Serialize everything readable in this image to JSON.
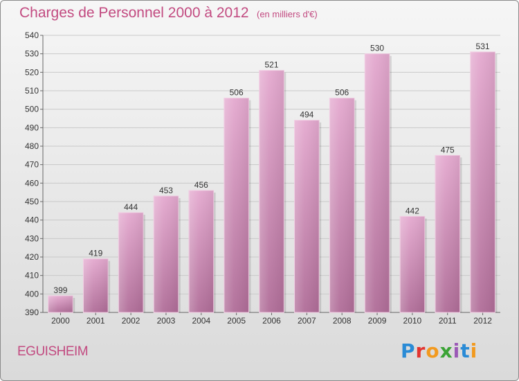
{
  "header": {
    "title": "Charges de Personnel 2000 à 2012",
    "subtitle": "(en milliers d'€)"
  },
  "footer": {
    "commune": "EGUISHEIM",
    "logo": {
      "letters": [
        "P",
        "r",
        "o",
        "x",
        "i",
        "t",
        "i"
      ],
      "colors": [
        "#2a8bd6",
        "#e3342f",
        "#f29a1f",
        "#3aa335",
        "#9b59b6",
        "#2a8bd6",
        "#f29a1f"
      ]
    }
  },
  "colors": {
    "bar_top": "#e4a9cf",
    "bar_bottom": "#b06d98",
    "text_accent": "#c24a80"
  },
  "chart_data": {
    "type": "bar",
    "title": "Charges de Personnel 2000 à 2012",
    "subtitle": "(en milliers d'€)",
    "xlabel": "",
    "ylabel": "",
    "categories": [
      "2000",
      "2001",
      "2002",
      "2003",
      "2004",
      "2005",
      "2006",
      "2007",
      "2008",
      "2009",
      "2010",
      "2011",
      "2012"
    ],
    "values": [
      399,
      419,
      444,
      453,
      456,
      506,
      521,
      494,
      506,
      530,
      442,
      475,
      531
    ],
    "ylim": [
      390,
      540
    ],
    "yticks": [
      390,
      400,
      410,
      420,
      430,
      440,
      450,
      460,
      470,
      480,
      490,
      500,
      510,
      520,
      530,
      540
    ],
    "grid": true,
    "legend": "none"
  }
}
